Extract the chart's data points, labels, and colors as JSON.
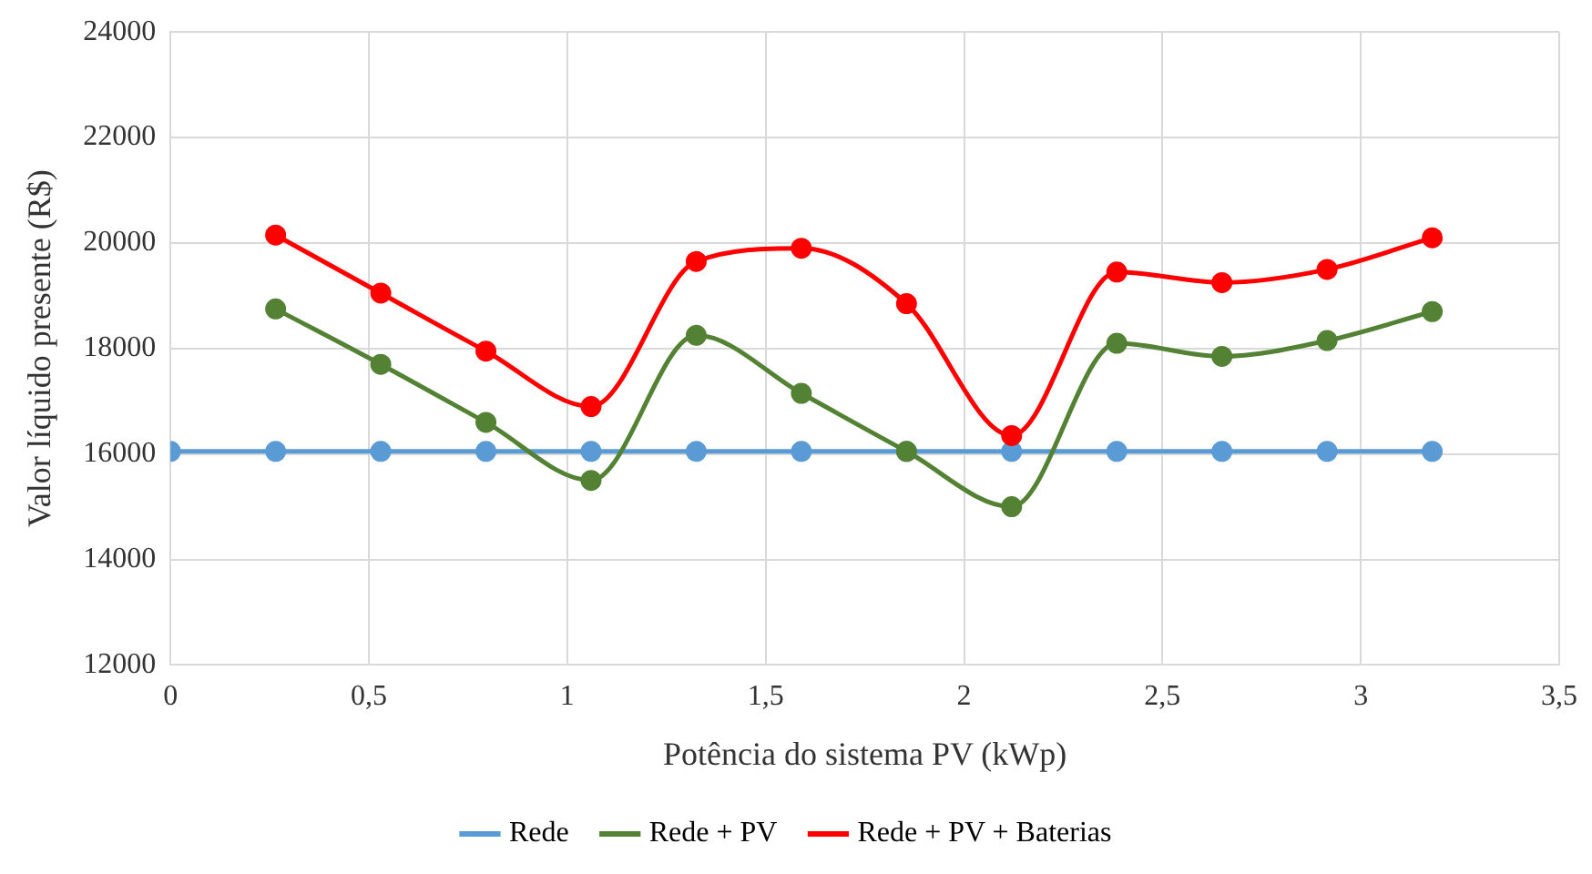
{
  "chart_data": {
    "type": "line",
    "xlabel": "Potência do sistema PV (kWp)",
    "ylabel": "Valor líquido presente (R$)",
    "xlim": [
      0,
      3.5
    ],
    "xticks": [
      0,
      {
        "value": 0.5,
        "label": "0,5"
      },
      1,
      {
        "value": 1.5,
        "label": "1,5"
      },
      2,
      {
        "value": 2.5,
        "label": "2,5"
      },
      3,
      {
        "value": 3.5,
        "label": "3,5"
      }
    ],
    "ylim": [
      12000,
      24000
    ],
    "yticks": [
      12000,
      14000,
      16000,
      18000,
      20000,
      22000,
      24000
    ],
    "grid": true,
    "legend": "bottom",
    "marker": "circle",
    "line_style": "solid",
    "series": [
      {
        "name": "Rede",
        "color": "#5b9bd5",
        "x": [
          0,
          0.265,
          0.53,
          0.795,
          1.06,
          1.325,
          1.59,
          1.855,
          2.12,
          2.385,
          2.65,
          2.915,
          3.18
        ],
        "values": [
          16050,
          16050,
          16050,
          16050,
          16050,
          16050,
          16050,
          16050,
          16050,
          16050,
          16050,
          16050,
          16050
        ]
      },
      {
        "name": "Rede + PV",
        "color": "#548235",
        "x": [
          0.265,
          0.53,
          0.795,
          1.06,
          1.325,
          1.59,
          1.855,
          2.12,
          2.385,
          2.65,
          2.915,
          3.18
        ],
        "values": [
          18750,
          17700,
          16600,
          15500,
          18250,
          17150,
          16050,
          15000,
          18100,
          17850,
          18150,
          18700
        ]
      },
      {
        "name": "Rede + PV + Baterias",
        "color": "#ff0000",
        "x": [
          0.265,
          0.53,
          0.795,
          1.06,
          1.325,
          1.59,
          1.855,
          2.12,
          2.385,
          2.65,
          2.915,
          3.18
        ],
        "values": [
          20150,
          19050,
          17950,
          16900,
          19650,
          19900,
          18850,
          16350,
          19450,
          19250,
          19500,
          20100
        ]
      }
    ]
  }
}
